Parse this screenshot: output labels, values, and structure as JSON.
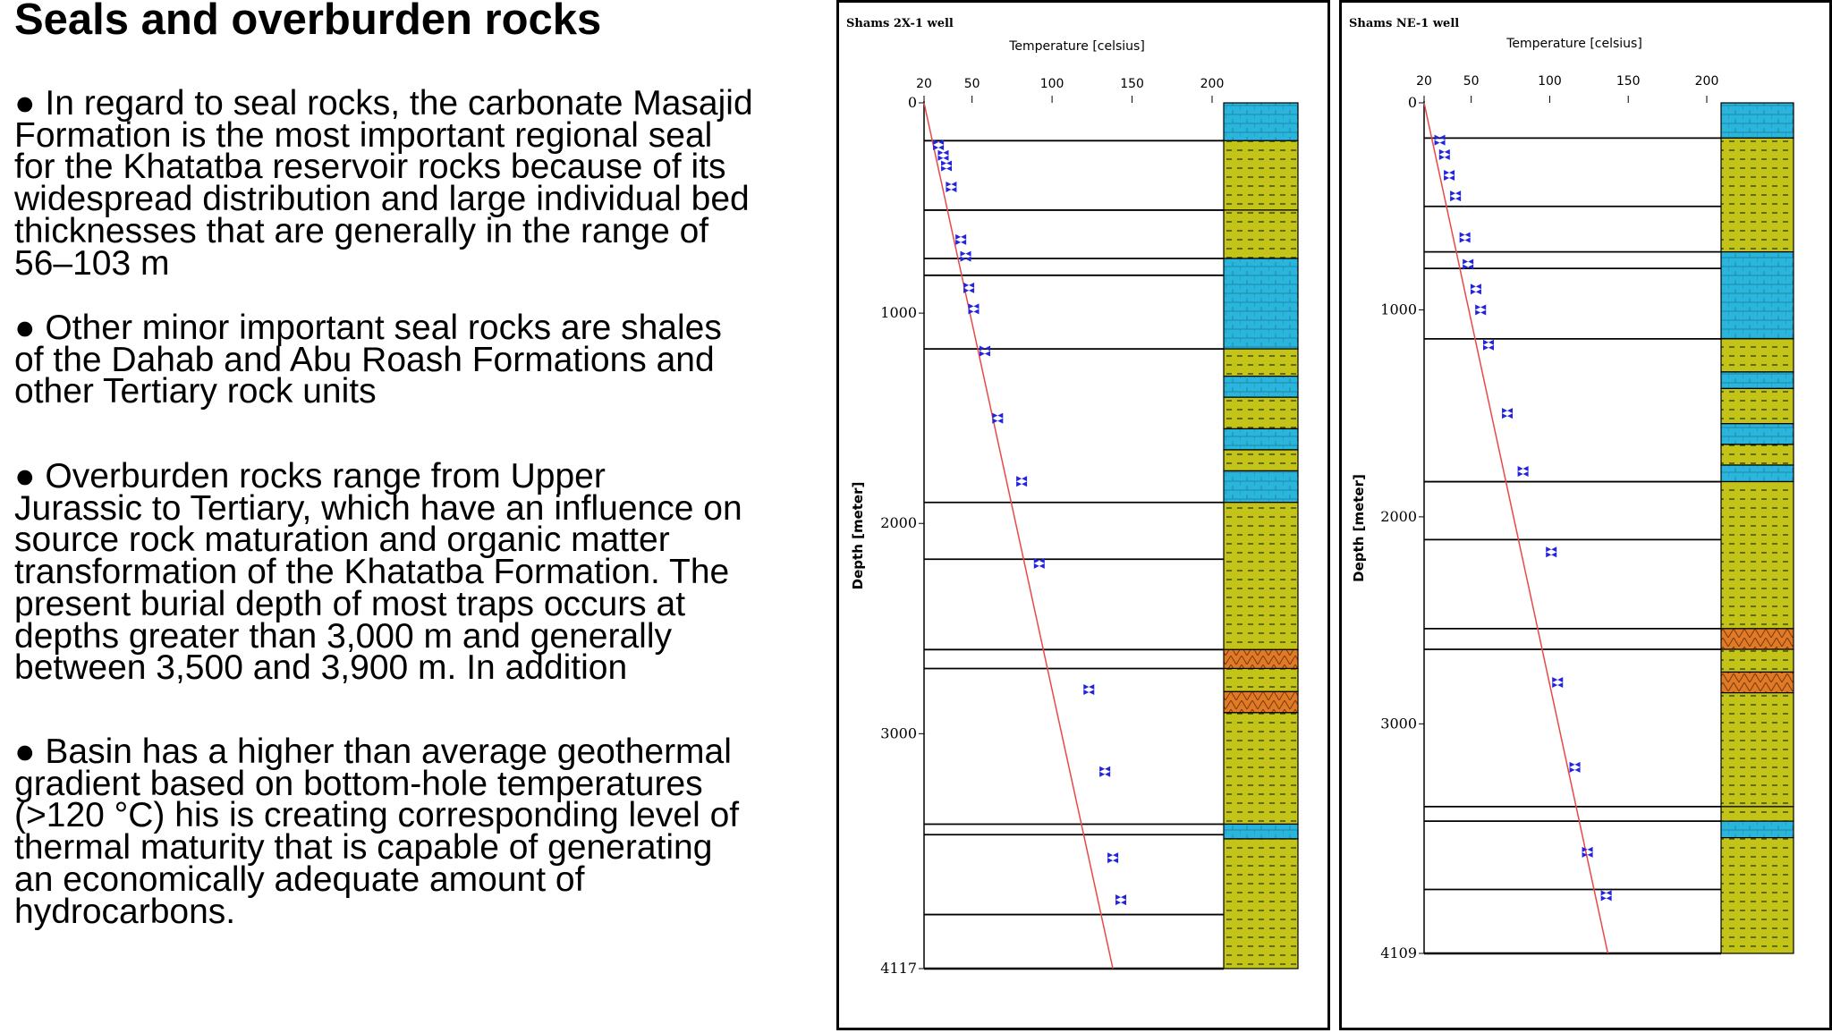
{
  "slide": {
    "title": "Seals and overburden rocks",
    "bullets": [
      [
        "● In regard to seal rocks, the carbonate Masajid",
        "Formation is the most important regional seal",
        "for the Khatatba reservoir rocks because of its",
        "widespread distribution and large individual bed",
        "thicknesses that are generally in the range of",
        "56–103 m"
      ],
      [
        "● Other minor important seal rocks are shales",
        "of the Dahab and Abu Roash Formations and",
        "other Tertiary rock units"
      ],
      [
        "● Overburden rocks range from Upper",
        "Jurassic to Tertiary, which have an influence on",
        "source rock maturation and organic matter",
        "transformation of the Khatatba Formation. The",
        "present burial depth of most traps occurs at",
        "depths greater than 3,000 m and generally",
        "between 3,500 and 3,900 m. In addition"
      ],
      [
        "● Basin has a higher than average geothermal",
        "gradient based on bottom-hole temperatures",
        "(>120 °C) his is creating corresponding level of",
        "thermal maturity that is capable of generating",
        "an economically adequate amount of",
        "hydrocarbons."
      ]
    ]
  },
  "colors": {
    "lime_shale": "#c4c418",
    "carbonate_blue": "#2ab5dc",
    "sandstone_orange": "#e07a26",
    "trend_line": "#e84848",
    "marker_blue": "#2424e0",
    "dash_dark": "#2a3d0a"
  },
  "chart_data": [
    {
      "type": "scatter",
      "title": "Shams 2X-1 well",
      "xlabel": "Temperature [celsius]",
      "ylabel": "Depth [meter]",
      "x_ticks": [
        "20",
        "50",
        "100",
        "150",
        "200"
      ],
      "y_ticks": [
        "0",
        "1000",
        "2000",
        "3000",
        "4117"
      ],
      "xlim": [
        20,
        200
      ],
      "ylim": [
        0,
        4117
      ],
      "grid": false,
      "trend": {
        "x": [
          20,
          138
        ],
        "y": [
          0,
          4117
        ]
      },
      "series": [
        {
          "x": [
            29,
            32,
            34,
            37,
            43,
            46,
            48,
            51,
            58,
            66,
            81,
            92,
            123,
            133,
            138,
            143
          ],
          "y": [
            200,
            250,
            300,
            400,
            650,
            730,
            880,
            980,
            1180,
            1500,
            1800,
            2190,
            2790,
            3180,
            3590,
            3790
          ]
        }
      ],
      "horizon_depths": [
        180,
        510,
        740,
        820,
        1170,
        1900,
        2170,
        2600,
        2690,
        3430,
        3480,
        3860,
        4117
      ],
      "lithology": [
        {
          "top": 0,
          "base": 180,
          "rock": "carbonate"
        },
        {
          "top": 180,
          "base": 510,
          "rock": "shale"
        },
        {
          "top": 510,
          "base": 740,
          "rock": "shale"
        },
        {
          "top": 740,
          "base": 1170,
          "rock": "carbonate"
        },
        {
          "top": 1170,
          "base": 1300,
          "rock": "shale"
        },
        {
          "top": 1300,
          "base": 1400,
          "rock": "carbonate"
        },
        {
          "top": 1400,
          "base": 1550,
          "rock": "shale"
        },
        {
          "top": 1550,
          "base": 1650,
          "rock": "carbonate"
        },
        {
          "top": 1650,
          "base": 1750,
          "rock": "shale"
        },
        {
          "top": 1750,
          "base": 1900,
          "rock": "carbonate"
        },
        {
          "top": 1900,
          "base": 2600,
          "rock": "shale"
        },
        {
          "top": 2600,
          "base": 2690,
          "rock": "sandstone"
        },
        {
          "top": 2690,
          "base": 2800,
          "rock": "shale"
        },
        {
          "top": 2800,
          "base": 2900,
          "rock": "sandstone"
        },
        {
          "top": 2900,
          "base": 3430,
          "rock": "shale"
        },
        {
          "top": 3430,
          "base": 3500,
          "rock": "carbonate"
        },
        {
          "top": 3500,
          "base": 4117,
          "rock": "shale"
        }
      ]
    },
    {
      "type": "scatter",
      "title": "Shams NE-1 well",
      "xlabel": "Temperature [celsius]",
      "ylabel": "Depth [meter]",
      "x_ticks": [
        "20",
        "50",
        "100",
        "150",
        "200"
      ],
      "y_ticks": [
        "0",
        "1000",
        "2000",
        "3000",
        "4109"
      ],
      "xlim": [
        20,
        200
      ],
      "ylim": [
        0,
        4109
      ],
      "grid": false,
      "trend": {
        "x": [
          20,
          137
        ],
        "y": [
          0,
          4109
        ]
      },
      "series": [
        {
          "x": [
            30,
            33,
            36,
            40,
            46,
            48,
            53,
            56,
            61,
            73,
            83,
            101,
            105,
            116,
            124,
            136
          ],
          "y": [
            180,
            250,
            350,
            450,
            650,
            780,
            900,
            1000,
            1170,
            1500,
            1780,
            2170,
            2800,
            3210,
            3620,
            3830
          ]
        }
      ],
      "horizon_depths": [
        170,
        500,
        720,
        800,
        1140,
        1830,
        2110,
        2540,
        2640,
        3400,
        3470,
        3800,
        4109
      ],
      "lithology": [
        {
          "top": 0,
          "base": 170,
          "rock": "carbonate"
        },
        {
          "top": 170,
          "base": 720,
          "rock": "shale"
        },
        {
          "top": 720,
          "base": 1140,
          "rock": "carbonate"
        },
        {
          "top": 1140,
          "base": 1300,
          "rock": "shale"
        },
        {
          "top": 1300,
          "base": 1380,
          "rock": "carbonate"
        },
        {
          "top": 1380,
          "base": 1550,
          "rock": "shale"
        },
        {
          "top": 1550,
          "base": 1650,
          "rock": "carbonate"
        },
        {
          "top": 1650,
          "base": 1750,
          "rock": "shale"
        },
        {
          "top": 1750,
          "base": 1830,
          "rock": "carbonate"
        },
        {
          "top": 1830,
          "base": 2540,
          "rock": "shale"
        },
        {
          "top": 2540,
          "base": 2640,
          "rock": "sandstone"
        },
        {
          "top": 2640,
          "base": 2750,
          "rock": "shale"
        },
        {
          "top": 2750,
          "base": 2850,
          "rock": "sandstone"
        },
        {
          "top": 2850,
          "base": 3400,
          "rock": "shale"
        },
        {
          "top": 3400,
          "base": 3470,
          "rock": "shale"
        },
        {
          "top": 3470,
          "base": 3550,
          "rock": "carbonate"
        },
        {
          "top": 3550,
          "base": 4109,
          "rock": "shale"
        }
      ]
    }
  ]
}
